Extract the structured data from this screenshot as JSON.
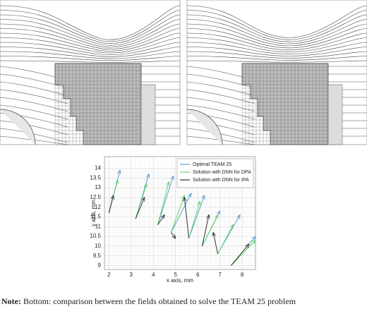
{
  "chart_data": {
    "type": "quiver",
    "x_label": "x axis, mm",
    "y_label": "y axis, mm",
    "xlim": [
      1.8,
      8.6
    ],
    "xticks": [
      2,
      3,
      4,
      5,
      6,
      7,
      8
    ],
    "ylim": [
      8.8,
      14.6
    ],
    "yticks": [
      9,
      9.5,
      10,
      10.5,
      11,
      11.5,
      12,
      12.5,
      13,
      13.5,
      14
    ],
    "grid": true,
    "legend": "upper right",
    "series": [
      {
        "name": "Optimal TEAM 25",
        "color": "#5b9fd6",
        "x0": [
          2.0,
          3.2,
          4.2,
          4.8,
          5.6,
          6.2,
          6.9,
          7.5
        ],
        "y0": [
          11.7,
          11.4,
          11.1,
          10.7,
          10.4,
          10.0,
          9.6,
          9.0
        ],
        "x1": [
          2.5,
          3.8,
          4.9,
          5.7,
          6.3,
          7.0,
          7.9,
          8.6
        ],
        "y1": [
          13.9,
          13.7,
          13.6,
          12.7,
          12.6,
          11.8,
          11.6,
          10.5
        ]
      },
      {
        "name": "Solution with DNN for DPA",
        "color": "#63d463",
        "x0": [
          2.0,
          3.2,
          4.2,
          4.8,
          5.6,
          6.2,
          6.9,
          7.5
        ],
        "y0": [
          11.7,
          11.4,
          11.1,
          10.7,
          10.4,
          10.0,
          9.6,
          9.0
        ],
        "x1": [
          2.4,
          3.7,
          4.7,
          5.4,
          6.1,
          6.9,
          7.6,
          8.6
        ],
        "y1": [
          13.4,
          13.2,
          13.3,
          12.6,
          12.3,
          11.6,
          11.1,
          10.3
        ]
      },
      {
        "name": "Solution with DNN for IPA",
        "color": "#333333",
        "x0": [
          2.0,
          3.2,
          4.2,
          4.8,
          5.6,
          6.2,
          6.9,
          7.5
        ],
        "y0": [
          11.7,
          11.4,
          11.1,
          10.7,
          10.4,
          10.0,
          9.6,
          9.0
        ],
        "x1": [
          2.2,
          3.6,
          4.5,
          5.0,
          5.4,
          6.5,
          6.7,
          8.3
        ],
        "y1": [
          12.6,
          12.5,
          11.6,
          10.4,
          12.5,
          11.6,
          10.7,
          10.1
        ]
      }
    ]
  },
  "note": {
    "label": "Note:",
    "text": " Bottom: comparison between the fields obtained to solve the TEAM 25 problem"
  }
}
